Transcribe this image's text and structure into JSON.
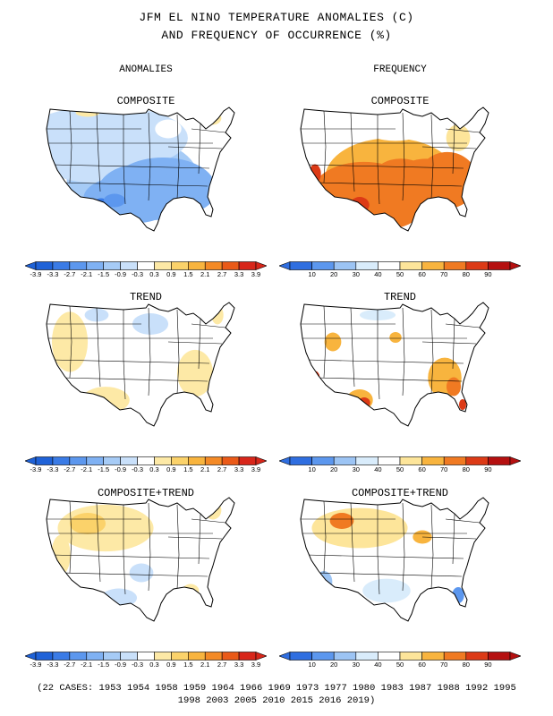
{
  "title_line1": "JFM EL NINO TEMPERATURE ANOMALIES (C)",
  "title_line2": "AND FREQUENCY OF OCCURRENCE (%)",
  "column_left": "ANOMALIES",
  "column_right": "FREQUENCY",
  "panels": {
    "anom_composite": "COMPOSITE",
    "anom_trend": "TREND",
    "anom_combined": "COMPOSITE+TREND",
    "freq_composite": "COMPOSITE",
    "freq_trend": "TREND",
    "freq_combined": "COMPOSITE+TREND"
  },
  "anomaly_scale": {
    "ticks": [
      "-3.9",
      "-3.3",
      "-2.7",
      "-2.1",
      "-1.5",
      "-0.9",
      "-0.3",
      "0.3",
      "0.9",
      "1.5",
      "2.1",
      "2.7",
      "3.3",
      "3.9"
    ],
    "colors": [
      "#1f62d8",
      "#3a7be6",
      "#5c97ee",
      "#7fb1f3",
      "#a6cbf6",
      "#c9e0fa",
      "#ffffff",
      "#fde9a6",
      "#fbd26a",
      "#f8b43e",
      "#f48a26",
      "#ea5a18",
      "#d8261a"
    ]
  },
  "frequency_scale": {
    "ticks": [
      "10",
      "20",
      "30",
      "40",
      "50",
      "60",
      "70",
      "80",
      "90"
    ],
    "colors": [
      "#2f6ee0",
      "#5c97ee",
      "#9cc4f4",
      "#d9ecfb",
      "#ffffff",
      "#fde59a",
      "#f8b43e",
      "#f07a22",
      "#dc3a16",
      "#b51010"
    ]
  },
  "footer_line1": "(22 CASES:  1953 1954 1958 1959 1964 1966 1969 1973 1977 1980 1983 1987 1988 1992 1995",
  "footer_line2": "1998 2003 2005 2010 2015 2016 2019)"
}
